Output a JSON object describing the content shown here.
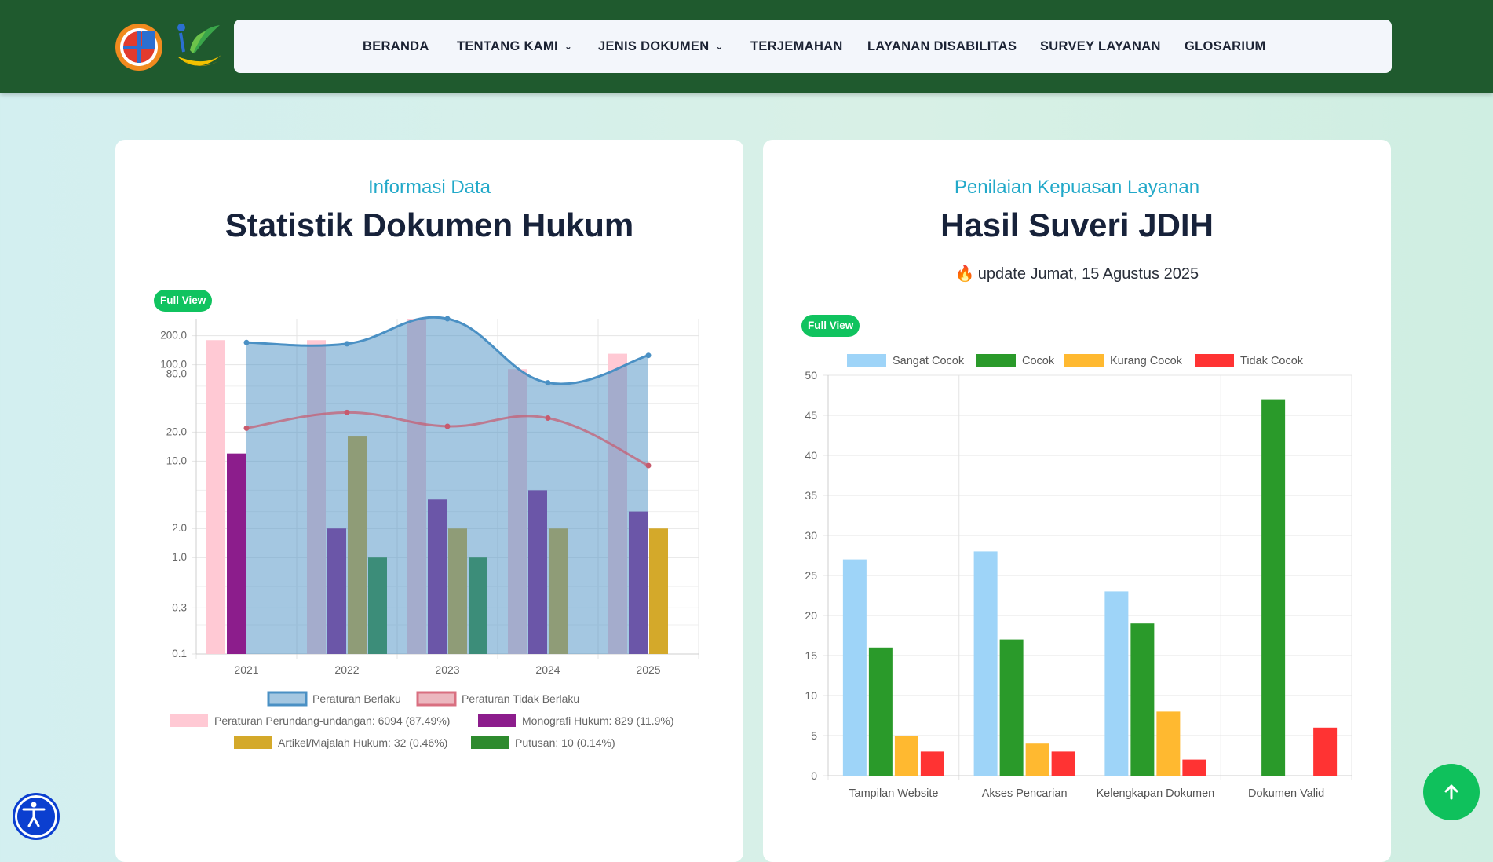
{
  "nav": {
    "items": [
      {
        "label": "BERANDA",
        "dropdown": false
      },
      {
        "label": "TENTANG KAMI",
        "dropdown": true
      },
      {
        "label": "JENIS DOKUMEN",
        "dropdown": true
      },
      {
        "label": "TERJEMAHAN",
        "dropdown": false
      },
      {
        "label": "LAYANAN DISABILITAS",
        "dropdown": false
      },
      {
        "label": "SURVEY LAYANAN",
        "dropdown": false
      },
      {
        "label": "GLOSARIUM",
        "dropdown": false
      }
    ]
  },
  "left_card": {
    "subtitle": "Informasi Data",
    "title": "Statistik Dokumen Hukum",
    "full_view": "Full View"
  },
  "right_card": {
    "subtitle": "Penilaian Kepuasan Layanan",
    "title": "Hasil Suveri JDIH",
    "update": "update Jumat, 15 Agustus 2025",
    "full_view": "Full View"
  },
  "icons": {
    "accessibility": "accessibility-icon",
    "scroll_top": "arrow-up-icon",
    "flame": "fire-icon"
  },
  "colors": {
    "header": "#1f5a2e",
    "accent": "#22a9c9",
    "button_green": "#10c35f"
  },
  "chart_data": [
    {
      "type": "bar",
      "scale": "log",
      "categories": [
        "2021",
        "2022",
        "2023",
        "2024",
        "2025"
      ],
      "yticks": [
        "200.0",
        "100.0",
        "80.0",
        "20.0",
        "10.0",
        "2.0",
        "1.0",
        "0.3",
        "0.1"
      ],
      "series": [
        {
          "name": "Peraturan Perundang-undangan: 6094 (87.49%)",
          "kind": "bar",
          "color": "#ffc9d4",
          "values": [
            180,
            180,
            300,
            90,
            130
          ]
        },
        {
          "name": "Monografi Hukum: 829 (11.9%)",
          "kind": "bar",
          "color": "#8c1d8c",
          "values": [
            12,
            2,
            4,
            5,
            3
          ]
        },
        {
          "name": "Artikel/Majalah Hukum: 32 (0.46%)",
          "kind": "bar",
          "color": "#d4a92a",
          "values": [
            null,
            18,
            2,
            2,
            2
          ]
        },
        {
          "name": "Putusan: 10 (0.14%)",
          "kind": "bar",
          "color": "#2e8b2e",
          "values": [
            null,
            1,
            1,
            null,
            null
          ]
        },
        {
          "name": "Peraturan Berlaku",
          "kind": "area",
          "color": "#4a90c4",
          "values": [
            170,
            165,
            300,
            65,
            125
          ]
        },
        {
          "name": "Peraturan Tidak Berlaku",
          "kind": "line",
          "color": "#d96f80",
          "values": [
            22,
            32,
            23,
            28,
            9
          ]
        }
      ]
    },
    {
      "type": "bar",
      "categories": [
        "Tampilan Website",
        "Akses Pencarian",
        "Kelengkapan Dokumen",
        "Dokumen Valid"
      ],
      "ylim": [
        0,
        50
      ],
      "yticks": [
        0,
        5,
        10,
        15,
        20,
        25,
        30,
        35,
        40,
        45,
        50
      ],
      "series": [
        {
          "name": "Sangat Cocok",
          "color": "#9ed4f8",
          "values": [
            27,
            28,
            23,
            0
          ]
        },
        {
          "name": "Cocok",
          "color": "#2a9a2a",
          "values": [
            16,
            17,
            19,
            47
          ]
        },
        {
          "name": "Kurang Cocok",
          "color": "#ffb930",
          "values": [
            5,
            4,
            8,
            0
          ]
        },
        {
          "name": "Tidak Cocok",
          "color": "#ff3333",
          "values": [
            3,
            3,
            2,
            6
          ]
        }
      ]
    }
  ]
}
